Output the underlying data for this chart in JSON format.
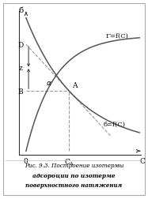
{
  "title_line1": "Рис. 9.3. Построение изотермы",
  "title_line2": "адсорбции по изотерме",
  "title_line3": "поверхностного натяжения",
  "label_gamma": "Γ=f(C)",
  "label_sigma": "б=f(C)",
  "label_D": "D",
  "label_z": "z",
  "label_B": "B",
  "label_A": "A",
  "label_0": "0",
  "label_CA": "C",
  "label_C": "C",
  "label_6": "б",
  "label_alpha": "α",
  "bg_color": "#ffffff",
  "curve_color": "#555555",
  "dashed_color": "#999999",
  "arrow_color": "#333333",
  "x_max": 10.0,
  "y_max": 10.0
}
